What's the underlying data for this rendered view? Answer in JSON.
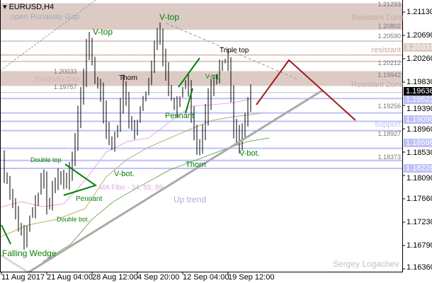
{
  "symbol": "EURUSD,H4",
  "watermark": "Sergey Logachev",
  "colors": {
    "zone": "#dccbc5",
    "support": "#c0c0f8",
    "bars": "#000000",
    "trend": "#aaaaaa",
    "forecast": "#a01c1c",
    "pattern": "#088008",
    "ma1": "#e8a8e0",
    "ma2": "#b8b070",
    "ma3": "#70b060"
  },
  "chart_data": {
    "type": "ohlc",
    "title": "EURUSD,H4",
    "x_tick_labels": [
      "11 Aug 2017",
      "21 Aug 04:00",
      "28 Aug 12:00",
      "4 Sep 20:00",
      "12 Sep 04:00",
      "19 Sep 12:00"
    ],
    "y_tick_labels": [
      "1.21130",
      "1.20690",
      "1.20260",
      "1.19830",
      "1.19390",
      "1.18960",
      "1.18530",
      "1.18090",
      "1.17660",
      "1.17230",
      "1.16790",
      "1.16360"
    ],
    "ylim": [
      1.1624,
      1.2165
    ],
    "approx_close_path": [
      1.18331,
      1.17937,
      1.17543,
      1.17148,
      1.1682,
      1.17411,
      1.17543,
      1.182,
      1.17411,
      1.17937,
      1.18068,
      1.17937,
      1.182,
      1.18988,
      1.19777,
      1.20696,
      1.19908,
      1.19645,
      1.18988,
      1.18594,
      1.18988,
      1.19777,
      1.19119,
      1.18857,
      1.19382,
      1.19645,
      1.20171,
      1.20893,
      1.20171,
      1.19645,
      1.19251,
      1.19645,
      1.19908,
      1.18988,
      1.18462,
      1.19119,
      1.19645,
      1.19908,
      1.20171,
      1.20302,
      1.18988,
      1.1866,
      1.19119,
      1.19645
    ],
    "current_price": "1.19636",
    "indicator_label": "MA Fibo - 34; 55; 89",
    "zones": [
      {
        "label": "Resistant Zone",
        "high": "1.21293",
        "low": "1.20802",
        "left_label": "open Runaway Gap"
      },
      {
        "label": "Resistant Zone",
        "high": "1.19942",
        "low": "1.19757",
        "left_label": "Runaway Gap",
        "left_high": "1.20033",
        "left_low": "1.19757"
      }
    ],
    "levels": [
      {
        "price": "1.20590",
        "kind": "resistance"
      },
      {
        "price": "1.20331",
        "kind": "resistance",
        "label": "resistant",
        "tag": "1.20331"
      },
      {
        "price": "1.20212",
        "kind": "resistance"
      },
      {
        "price": "1.19523",
        "kind": "support",
        "tag": "1.19523"
      },
      {
        "price": "1.19256",
        "kind": "support"
      },
      {
        "price": "1.19099",
        "kind": "support",
        "label": "support",
        "tag": "1.19099"
      },
      {
        "price": "1.18927",
        "kind": "support"
      },
      {
        "price": "1.18598",
        "kind": "support",
        "tag": "1.18598"
      },
      {
        "price": "1.18373",
        "kind": "support"
      },
      {
        "price": "1.18226",
        "kind": "support",
        "tag": "1.18226"
      }
    ],
    "annotations": [
      "V-top",
      "V-top",
      "Triple top",
      "Thorn",
      "Thorn",
      "Pennant",
      "Pennant",
      "V-top",
      "V-bot.",
      "V-bot.",
      "Double top",
      "Double bot.",
      "Falling Wedge",
      "Up trend"
    ]
  }
}
